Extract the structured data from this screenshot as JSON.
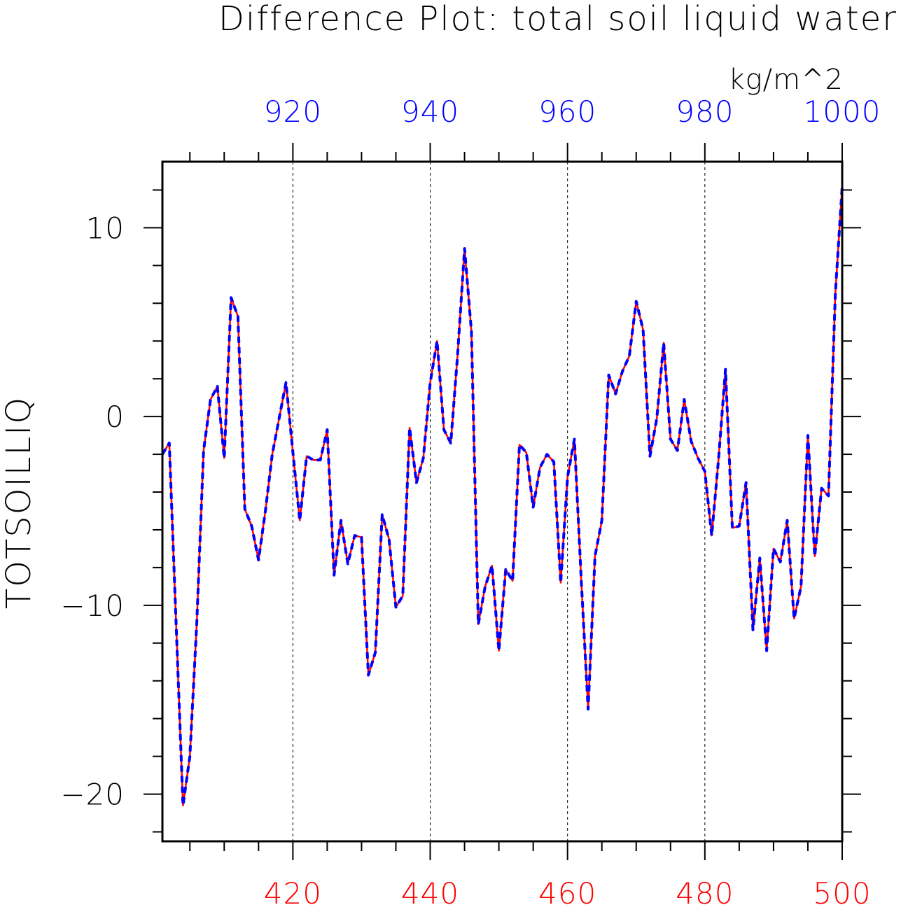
{
  "chart_data": {
    "type": "line",
    "title": "Difference Plot: total soil liquid water",
    "units": "kg/m^2",
    "ylabel": "TOTSOILLIQ",
    "bottom_axis": {
      "color": "#ff0000",
      "range": [
        401,
        500
      ],
      "ticks": [
        420,
        440,
        460,
        480,
        500
      ]
    },
    "top_axis": {
      "color": "#0000ff",
      "range": [
        901,
        1000
      ],
      "ticks": [
        920,
        940,
        960,
        980,
        1000
      ]
    },
    "ylim": [
      -22.5,
      13.5
    ],
    "yticks": [
      -20,
      -10,
      0,
      10
    ],
    "y_tick_labels": [
      "−20",
      "−10",
      "0",
      "10"
    ],
    "vertical_gridlines": "dashed",
    "series": [
      {
        "color": "#ff0000",
        "style": "solid",
        "x": [
          401,
          402,
          403,
          404,
          405,
          406,
          407,
          408,
          409,
          410,
          411,
          412,
          413,
          414,
          415,
          416,
          417,
          418,
          419,
          420,
          421,
          422,
          423,
          424,
          425,
          426,
          427,
          428,
          429,
          430,
          431,
          432,
          433,
          434,
          435,
          436,
          437,
          438,
          439,
          440,
          441,
          442,
          443,
          444,
          445,
          446,
          447,
          448,
          449,
          450,
          451,
          452,
          453,
          454,
          455,
          456,
          457,
          458,
          459,
          460,
          461,
          462,
          463,
          464,
          465,
          466,
          467,
          468,
          469,
          470,
          471,
          472,
          473,
          474,
          475,
          476,
          477,
          478,
          479,
          480,
          481,
          482,
          483,
          484,
          485,
          486,
          487,
          488,
          489,
          490,
          491,
          492,
          493,
          494,
          495,
          496,
          497,
          498,
          499,
          500
        ],
        "values": [
          -2.0,
          -1.4,
          -11.0,
          -20.6,
          -18.0,
          -11.0,
          -1.8,
          0.9,
          1.6,
          -2.2,
          6.3,
          5.3,
          -4.9,
          -5.8,
          -7.6,
          -5.0,
          -2.0,
          -0.1,
          1.8,
          -1.9,
          -5.5,
          -2.1,
          -2.3,
          -2.3,
          -0.7,
          -8.4,
          -5.5,
          -7.8,
          -6.3,
          -6.4,
          -13.7,
          -12.5,
          -5.2,
          -6.5,
          -10.1,
          -9.5,
          -0.6,
          -3.5,
          -2.2,
          1.8,
          4.0,
          -0.7,
          -1.4,
          3.3,
          8.9,
          4.5,
          -11.0,
          -9.0,
          -7.9,
          -12.4,
          -8.1,
          -8.7,
          -1.5,
          -1.9,
          -4.8,
          -2.7,
          -2.0,
          -2.4,
          -8.8,
          -3.2,
          -1.2,
          -8.7,
          -15.5,
          -7.4,
          -5.5,
          2.2,
          1.2,
          2.4,
          3.2,
          6.1,
          4.6,
          -2.1,
          -0.1,
          3.9,
          -1.2,
          -1.8,
          0.9,
          -1.3,
          -2.2,
          -2.9,
          -6.3,
          -2.2,
          2.5,
          -5.9,
          -5.8,
          -3.5,
          -11.3,
          -7.5,
          -12.4,
          -7.0,
          -7.7,
          -5.5,
          -10.7,
          -9.0,
          -1.0,
          -7.4,
          -3.8,
          -4.2,
          6.5,
          12.2
        ]
      },
      {
        "color": "#0000ff",
        "style": "dashed",
        "x": [
          401,
          402,
          403,
          404,
          405,
          406,
          407,
          408,
          409,
          410,
          411,
          412,
          413,
          414,
          415,
          416,
          417,
          418,
          419,
          420,
          421,
          422,
          423,
          424,
          425,
          426,
          427,
          428,
          429,
          430,
          431,
          432,
          433,
          434,
          435,
          436,
          437,
          438,
          439,
          440,
          441,
          442,
          443,
          444,
          445,
          446,
          447,
          448,
          449,
          450,
          451,
          452,
          453,
          454,
          455,
          456,
          457,
          458,
          459,
          460,
          461,
          462,
          463,
          464,
          465,
          466,
          467,
          468,
          469,
          470,
          471,
          472,
          473,
          474,
          475,
          476,
          477,
          478,
          479,
          480,
          481,
          482,
          483,
          484,
          485,
          486,
          487,
          488,
          489,
          490,
          491,
          492,
          493,
          494,
          495,
          496,
          497,
          498,
          499,
          500
        ],
        "values": [
          -2.0,
          -1.4,
          -11.0,
          -20.6,
          -18.0,
          -11.0,
          -1.8,
          0.9,
          1.6,
          -2.2,
          6.3,
          5.3,
          -4.9,
          -5.8,
          -7.6,
          -5.0,
          -2.0,
          -0.1,
          1.8,
          -1.9,
          -5.5,
          -2.1,
          -2.3,
          -2.3,
          -0.7,
          -8.4,
          -5.5,
          -7.8,
          -6.3,
          -6.4,
          -13.7,
          -12.5,
          -5.2,
          -6.5,
          -10.1,
          -9.5,
          -0.6,
          -3.5,
          -2.2,
          1.8,
          4.0,
          -0.7,
          -1.4,
          3.3,
          8.9,
          4.5,
          -11.0,
          -9.0,
          -7.9,
          -12.4,
          -8.1,
          -8.7,
          -1.5,
          -1.9,
          -4.8,
          -2.7,
          -2.0,
          -2.4,
          -8.8,
          -3.2,
          -1.2,
          -8.7,
          -15.5,
          -7.4,
          -5.5,
          2.2,
          1.2,
          2.4,
          3.2,
          6.1,
          4.6,
          -2.1,
          -0.1,
          3.9,
          -1.2,
          -1.8,
          0.9,
          -1.3,
          -2.2,
          -2.9,
          -6.3,
          -2.2,
          2.5,
          -5.9,
          -5.8,
          -3.5,
          -11.3,
          -7.5,
          -12.4,
          -7.0,
          -7.7,
          -5.5,
          -10.7,
          -9.0,
          -1.0,
          -7.4,
          -3.8,
          -4.2,
          6.5,
          12.2
        ]
      }
    ]
  }
}
